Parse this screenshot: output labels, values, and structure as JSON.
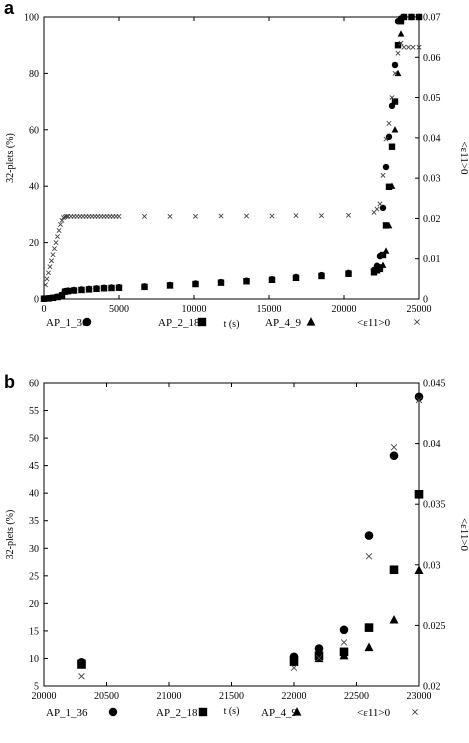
{
  "panels": {
    "a": "a",
    "b": "b"
  },
  "chart_data": [
    {
      "type": "scatter",
      "xlabel": "t (s)",
      "ylabel": "32-plets (%)",
      "y2label": "<ε11>0",
      "xlim": [
        0,
        25000
      ],
      "ylim": [
        0,
        100
      ],
      "y2lim": [
        0,
        0.07
      ],
      "xticks": [
        "0",
        "5000",
        "10000",
        "15000",
        "20000",
        "25000"
      ],
      "yticks": [
        "0",
        "20",
        "40",
        "60",
        "80",
        "100"
      ],
      "y2ticks": [
        "0",
        "0.01",
        "0.02",
        "0.03",
        "0.04",
        "0.05",
        "0.06",
        "0.07"
      ],
      "legend_position": "bottom",
      "series": [
        {
          "name": "AP_1_36",
          "marker": "circle",
          "x": [
            0,
            300,
            600,
            900,
            1200,
            1400,
            1600,
            2000,
            2500,
            3000,
            3500,
            4000,
            4500,
            5000,
            6700,
            8400,
            10100,
            11800,
            13500,
            15200,
            16800,
            18500,
            20300,
            22000,
            22200,
            22400,
            22600,
            22800,
            23000,
            23200,
            23400,
            23600,
            23800,
            24000,
            24500,
            25000
          ],
          "y": [
            0.2,
            0.3,
            0.5,
            0.8,
            1.5,
            2.8,
            3.0,
            3.2,
            3.4,
            3.6,
            3.8,
            4.0,
            4.1,
            4.2,
            4.5,
            5.0,
            5.5,
            6.0,
            6.5,
            7.0,
            7.8,
            8.5,
            9.3,
            10.3,
            11.8,
            15.2,
            32.3,
            46.8,
            57.5,
            68.5,
            83.0,
            98.5,
            99.5,
            100,
            100,
            100
          ]
        },
        {
          "name": "AP_2_18",
          "marker": "square",
          "x": [
            0,
            300,
            600,
            900,
            1200,
            1400,
            1600,
            2000,
            2500,
            3000,
            3500,
            4000,
            4500,
            5000,
            6700,
            8400,
            10100,
            11800,
            13500,
            15200,
            16800,
            18500,
            20300,
            22000,
            22200,
            22400,
            22600,
            22800,
            23000,
            23200,
            23400,
            23600,
            23800,
            24000,
            24500,
            25000
          ],
          "y": [
            0.1,
            0.2,
            0.4,
            0.7,
            1.3,
            2.6,
            2.8,
            3.0,
            3.2,
            3.4,
            3.6,
            3.8,
            3.9,
            4.0,
            4.3,
            4.8,
            5.3,
            5.8,
            6.3,
            6.8,
            7.5,
            8.2,
            9.0,
            9.6,
            10.5,
            11.2,
            15.6,
            26.1,
            39.8,
            54.0,
            70.0,
            90.0,
            98.5,
            100,
            100,
            100
          ]
        },
        {
          "name": "AP_4_9",
          "marker": "triangle",
          "x": [
            0,
            300,
            600,
            900,
            1200,
            1400,
            1600,
            2000,
            2500,
            3000,
            3500,
            4000,
            4500,
            5000,
            6700,
            8400,
            10100,
            11800,
            13500,
            15200,
            16800,
            18500,
            20300,
            22000,
            22200,
            22400,
            22600,
            22800,
            23000,
            23200,
            23400,
            23600,
            23800,
            24000,
            24500,
            25000
          ],
          "y": [
            0.1,
            0.2,
            0.3,
            0.6,
            1.2,
            2.5,
            2.7,
            2.9,
            3.1,
            3.3,
            3.5,
            3.7,
            3.8,
            3.9,
            4.2,
            4.7,
            5.2,
            5.7,
            6.2,
            6.7,
            7.4,
            8.0,
            8.8,
            9.3,
            10.0,
            10.5,
            12.0,
            17.0,
            26.0,
            40.0,
            60.0,
            80.0,
            94.0,
            100,
            100,
            100
          ]
        },
        {
          "name": "<ε11>0",
          "marker": "cross",
          "axis": "right",
          "x": [
            100,
            200,
            300,
            400,
            500,
            600,
            700,
            800,
            900,
            1000,
            1100,
            1200,
            1300,
            1400,
            1500,
            1600,
            1800,
            2000,
            2200,
            2400,
            2600,
            2800,
            3000,
            3200,
            3400,
            3600,
            3800,
            4000,
            4200,
            4400,
            4600,
            4800,
            5000,
            6700,
            8400,
            10100,
            11800,
            13500,
            15200,
            16800,
            18500,
            20300,
            22000,
            22200,
            22400,
            22600,
            22800,
            23000,
            23200,
            23400,
            23600,
            23800,
            24000,
            24300,
            24600,
            25000
          ],
          "y": [
            0.0035,
            0.005,
            0.0065,
            0.008,
            0.0095,
            0.011,
            0.0125,
            0.014,
            0.0155,
            0.017,
            0.0185,
            0.0195,
            0.0202,
            0.0204,
            0.0205,
            0.0205,
            0.0205,
            0.0205,
            0.0205,
            0.0205,
            0.0205,
            0.0205,
            0.0205,
            0.0205,
            0.0205,
            0.0205,
            0.0205,
            0.0205,
            0.0205,
            0.0205,
            0.0205,
            0.0205,
            0.0205,
            0.0205,
            0.0205,
            0.0205,
            0.0206,
            0.0206,
            0.0206,
            0.0207,
            0.0207,
            0.0208,
            0.0215,
            0.0223,
            0.0236,
            0.0307,
            0.0397,
            0.0436,
            0.05,
            0.056,
            0.061,
            0.0635,
            0.0625,
            0.0625,
            0.0625,
            0.0625
          ]
        }
      ]
    },
    {
      "type": "scatter",
      "xlabel": "t (s)",
      "ylabel": "32-plets (%)",
      "y2label": "<ε11>0",
      "xlim": [
        20000,
        23000
      ],
      "ylim": [
        5,
        60
      ],
      "y2lim": [
        0.02,
        0.045
      ],
      "xticks": [
        "20000",
        "20500",
        "21000",
        "21500",
        "22000",
        "22500",
        "23000"
      ],
      "yticks": [
        "5",
        "10",
        "15",
        "20",
        "25",
        "30",
        "35",
        "40",
        "45",
        "50",
        "55",
        "60"
      ],
      "y2ticks": [
        "0.02",
        "0.025",
        "0.03",
        "0.035",
        "0.04",
        "0.045"
      ],
      "legend_position": "bottom",
      "series": [
        {
          "name": "AP_1_36",
          "marker": "circle",
          "x": [
            20300,
            22000,
            22200,
            22400,
            22600,
            22800,
            23000
          ],
          "y": [
            9.3,
            10.3,
            11.8,
            15.2,
            32.3,
            46.8,
            57.5
          ]
        },
        {
          "name": "AP_2_18",
          "marker": "square",
          "x": [
            20300,
            22000,
            22200,
            22400,
            22600,
            22800,
            23000
          ],
          "y": [
            9.0,
            9.6,
            10.5,
            11.2,
            15.6,
            26.1,
            39.8
          ]
        },
        {
          "name": "AP_4_9",
          "marker": "triangle",
          "x": [
            20300,
            22000,
            22200,
            22400,
            22600,
            22800,
            23000
          ],
          "y": [
            8.8,
            9.3,
            10.0,
            10.5,
            12.0,
            17.0,
            26.0
          ]
        },
        {
          "name": "<ε11>0",
          "marker": "cross",
          "axis": "right",
          "x": [
            20300,
            22000,
            22200,
            22400,
            22600,
            22800,
            23000
          ],
          "y": [
            0.0208,
            0.0215,
            0.0223,
            0.0236,
            0.0307,
            0.0397,
            0.0436
          ]
        }
      ]
    }
  ]
}
